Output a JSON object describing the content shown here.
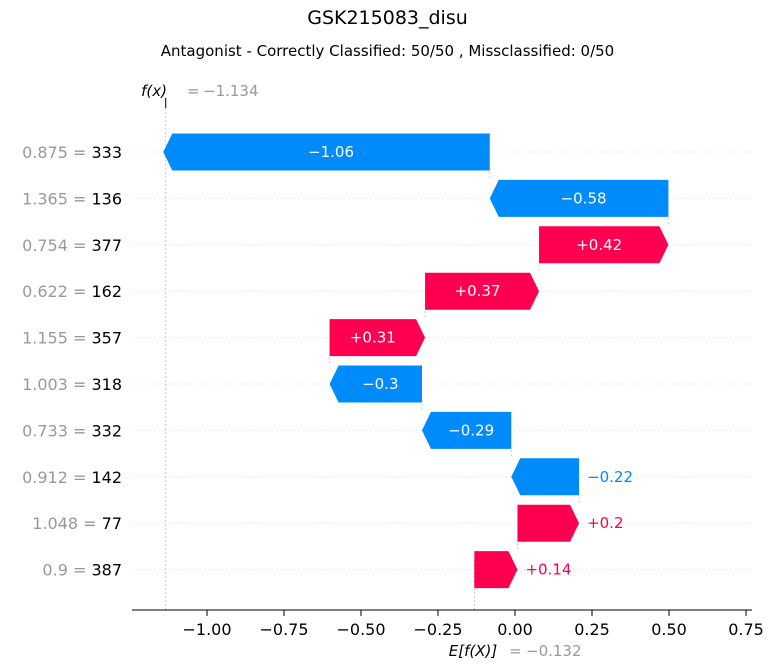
{
  "chart_data": {
    "type": "waterfall",
    "title": "GSK215083_disu",
    "subtitle": "Antagonist - Correctly Classified: 50/50 , Missclassified: 0/50",
    "fx_label": "f(x)",
    "fx_value": "−1.134",
    "base_label": "E[f(X)]",
    "base_value": "−0.132",
    "fx": -1.134,
    "base": -0.132,
    "xlim": [
      -1.25,
      0.76
    ],
    "xticks": [
      -1.0,
      -0.75,
      -0.5,
      -0.25,
      0.0,
      0.25,
      0.5,
      0.75
    ],
    "xtick_labels": [
      "−1.00",
      "−0.75",
      "−0.50",
      "−0.25",
      "0.00",
      "0.25",
      "0.50",
      "0.75"
    ],
    "features": [
      {
        "value": "0.875",
        "name": "333",
        "contribution": -1.06,
        "label": "−1.06"
      },
      {
        "value": "1.365",
        "name": "136",
        "contribution": -0.58,
        "label": "−0.58"
      },
      {
        "value": "0.754",
        "name": "377",
        "contribution": 0.42,
        "label": "+0.42"
      },
      {
        "value": "0.622",
        "name": "162",
        "contribution": 0.37,
        "label": "+0.37"
      },
      {
        "value": "1.155",
        "name": "357",
        "contribution": 0.31,
        "label": "+0.31"
      },
      {
        "value": "1.003",
        "name": "318",
        "contribution": -0.3,
        "label": "−0.3"
      },
      {
        "value": "0.733",
        "name": "332",
        "contribution": -0.29,
        "label": "−0.29"
      },
      {
        "value": "0.912",
        "name": "142",
        "contribution": -0.22,
        "label": "−0.22"
      },
      {
        "value": "1.048",
        "name": "77",
        "contribution": 0.2,
        "label": "+0.2"
      },
      {
        "value": "0.9",
        "name": "387",
        "contribution": 0.14,
        "label": "+0.14"
      }
    ],
    "colors": {
      "positive": "#ff0051",
      "negative": "#008bfb",
      "muted": "#999999",
      "text": "#000000"
    }
  }
}
